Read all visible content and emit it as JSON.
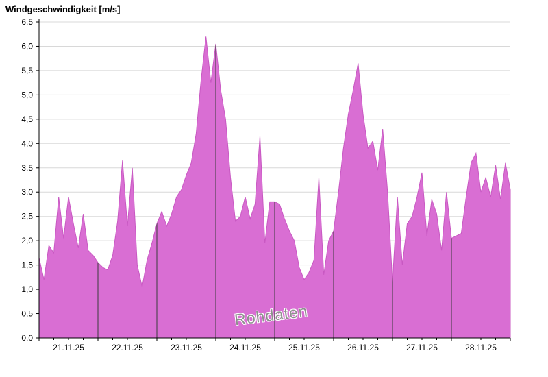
{
  "title": "Windgeschwindigkeit [m/s]",
  "watermark": "Rohdaten",
  "chart_data": {
    "type": "area",
    "title": "Windgeschwindigkeit [m/s]",
    "ylabel": "Windgeschwindigkeit [m/s]",
    "xlabel": "",
    "ylim": [
      0,
      6.5
    ],
    "ytick_step": 0.5,
    "decimal_separator": ",",
    "grid": true,
    "legend_position": "none",
    "x_categories": [
      "21.11.25",
      "22.11.25",
      "23.11.25",
      "24.11.25",
      "25.11.25",
      "26.11.25",
      "27.11.25",
      "28.11.25"
    ],
    "points_per_day": 12,
    "series": [
      {
        "name": "Rohdaten",
        "values": [
          1.65,
          1.2,
          1.9,
          1.75,
          2.9,
          2.05,
          2.9,
          2.35,
          1.85,
          2.55,
          1.8,
          1.7,
          1.55,
          1.45,
          1.4,
          1.7,
          2.4,
          3.65,
          2.3,
          3.5,
          1.5,
          1.05,
          1.6,
          1.95,
          2.35,
          2.6,
          2.3,
          2.55,
          2.9,
          3.05,
          3.35,
          3.6,
          4.2,
          5.3,
          6.2,
          5.25,
          6.05,
          5.1,
          4.5,
          3.3,
          2.4,
          2.5,
          2.9,
          2.45,
          2.75,
          4.15,
          1.95,
          2.8,
          2.8,
          2.75,
          2.45,
          2.2,
          2.0,
          1.45,
          1.2,
          1.35,
          1.6,
          3.3,
          1.3,
          2.0,
          2.2,
          3.0,
          3.9,
          4.6,
          5.1,
          5.65,
          4.6,
          3.9,
          4.05,
          3.45,
          4.3,
          3.0,
          1.15,
          2.9,
          1.5,
          2.35,
          2.5,
          2.9,
          3.4,
          2.1,
          2.85,
          2.55,
          1.8,
          3.0,
          2.05,
          2.1,
          2.15,
          2.9,
          3.6,
          3.8,
          3.0,
          3.3,
          2.9,
          3.55,
          2.85,
          3.6,
          3.05
        ]
      }
    ],
    "colors": {
      "fill": "#d96ed3",
      "stroke": "#c858c2",
      "grid": "#d8d8d8",
      "axis": "#000000",
      "day_line": "#3c3c3c",
      "background": "#ffffff"
    }
  }
}
